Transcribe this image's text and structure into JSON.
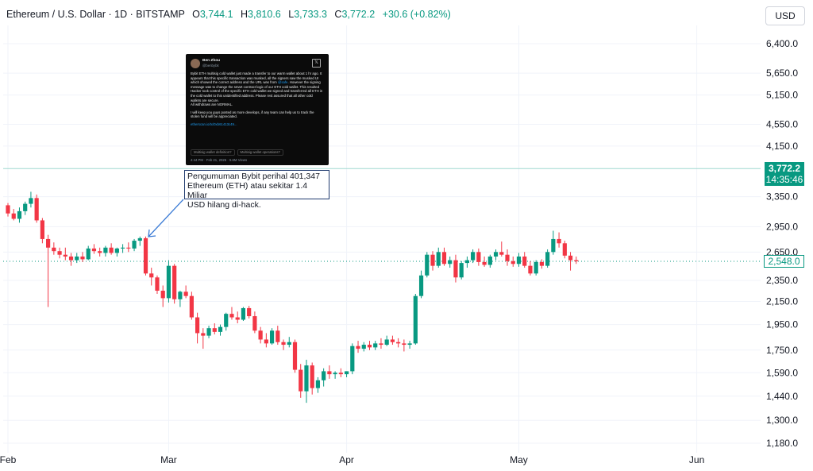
{
  "header": {
    "symbol": "Ethereum / U.S. Dollar · 1D · BITSTAMP",
    "open_label": "O",
    "open": "3,744.1",
    "high_label": "H",
    "high": "3,810.6",
    "low_label": "L",
    "low": "3,733.3",
    "close_label": "C",
    "close": "3,772.2",
    "change": "+30.6 (+0.82%)"
  },
  "currency_button": "USD",
  "colors": {
    "up": "#089981",
    "down": "#f23645",
    "line": "#9fd8cf",
    "arrow": "#3a7bd5"
  },
  "callout": {
    "line1": "Pengumuman Bybit perihal 401,347",
    "line2": "Ethereum (ETH) atau sekitar 1.4 Miliar",
    "line3": "USD hilang di-hack."
  },
  "tweet": {
    "name": "Ben Zhou",
    "handle": "@benbybit",
    "p1": "Bybit ETH multisig cold wallet just made a transfer to our warm wallet about 1 hr ago. It appears that this specific transaction was musked, all the signers saw the musked UI which showed the correct address and the URL was from",
    "p1_link": "@safe",
    "p1_end": ". However the signing message was to change the smart contract logic of our ETH cold wallet. This resulted Hacker took control of the specific ETH cold wallet we signed and transferred all ETH in the cold wallet to this unidentified address. Please rest assured that all other cold wallets are secure.",
    "p2": "All withdraws are NORMAL.",
    "p3": "I will keep you guys posted as more develops, if any team can help us to track the stolen fund will be appreciated.",
    "link": "etherscan.io/tx/0xb61413c49...",
    "tag1": "Multisig wallet definition?",
    "tag2": "Multisig wallet operations?",
    "meta": "4:44 PM · Feb 21, 2025 · 5.6M Views"
  },
  "price_labels": {
    "current": "3,772.2",
    "countdown": "14:35:46",
    "last": "2,548.0"
  },
  "chart_data": {
    "type": "candlestick",
    "scale": "log",
    "ylim": [
      1130,
      7300
    ],
    "y_ticks": [
      6400,
      5650,
      5150,
      4550,
      4150,
      3350,
      2950,
      2650,
      2350,
      2150,
      1950,
      1750,
      1590,
      1440,
      1300,
      1180
    ],
    "y_tick_labels": [
      "6,400.0",
      "5,650.0",
      "5,150.0",
      "4,550.0",
      "4,150.0",
      "3,350.0",
      "2,950.0",
      "2,650.0",
      "2,350.0",
      "2,150.0",
      "1,950.0",
      "1,750.0",
      "1,590.0",
      "1,440.0",
      "1,300.0",
      "1,180.0"
    ],
    "x_labels": [
      "Feb",
      "Mar",
      "Apr",
      "May",
      "Jun"
    ],
    "x_label_days": [
      0,
      28,
      59,
      89,
      120
    ],
    "start_date": "2025-01-26",
    "current_price": 3772.2,
    "last_price": 2548.0,
    "candles": [
      [
        3230,
        3260,
        3080,
        3120
      ],
      [
        3120,
        3180,
        3030,
        3050
      ],
      [
        3050,
        3200,
        3000,
        3150
      ],
      [
        3150,
        3280,
        3100,
        3250
      ],
      [
        3250,
        3420,
        3200,
        3330
      ],
      [
        3330,
        3380,
        3000,
        3030
      ],
      [
        3030,
        3060,
        2750,
        2800
      ],
      [
        2800,
        2850,
        2100,
        2700
      ],
      [
        2700,
        2760,
        2620,
        2660
      ],
      [
        2660,
        2700,
        2580,
        2620
      ],
      [
        2620,
        2700,
        2560,
        2600
      ],
      [
        2600,
        2640,
        2500,
        2560
      ],
      [
        2560,
        2640,
        2530,
        2600
      ],
      [
        2600,
        2650,
        2540,
        2570
      ],
      [
        2570,
        2720,
        2560,
        2690
      ],
      [
        2690,
        2740,
        2630,
        2660
      ],
      [
        2660,
        2700,
        2600,
        2640
      ],
      [
        2640,
        2720,
        2600,
        2700
      ],
      [
        2700,
        2750,
        2620,
        2640
      ],
      [
        2640,
        2700,
        2600,
        2690
      ],
      [
        2690,
        2740,
        2640,
        2700
      ],
      [
        2700,
        2760,
        2650,
        2690
      ],
      [
        2690,
        2800,
        2660,
        2780
      ],
      [
        2780,
        2830,
        2720,
        2810
      ],
      [
        2810,
        2830,
        2400,
        2420
      ],
      [
        2420,
        2480,
        2300,
        2380
      ],
      [
        2380,
        2400,
        2220,
        2250
      ],
      [
        2250,
        2300,
        2100,
        2180
      ],
      [
        2180,
        2560,
        2140,
        2500
      ],
      [
        2500,
        2520,
        2130,
        2170
      ],
      [
        2170,
        2250,
        2100,
        2240
      ],
      [
        2240,
        2300,
        2180,
        2200
      ],
      [
        2200,
        2240,
        1990,
        2010
      ],
      [
        2010,
        2050,
        1800,
        1880
      ],
      [
        1880,
        1920,
        1760,
        1860
      ],
      [
        1860,
        1940,
        1840,
        1920
      ],
      [
        1920,
        1960,
        1870,
        1890
      ],
      [
        1890,
        1950,
        1860,
        1930
      ],
      [
        1930,
        2050,
        1900,
        2040
      ],
      [
        2040,
        2100,
        1990,
        2010
      ],
      [
        2010,
        2060,
        1960,
        1990
      ],
      [
        1990,
        2100,
        1980,
        2090
      ],
      [
        2090,
        2110,
        2000,
        2020
      ],
      [
        2020,
        2060,
        1880,
        1900
      ],
      [
        1900,
        1930,
        1800,
        1830
      ],
      [
        1830,
        1880,
        1770,
        1800
      ],
      [
        1800,
        1920,
        1790,
        1900
      ],
      [
        1900,
        1940,
        1790,
        1810
      ],
      [
        1810,
        1830,
        1750,
        1790
      ],
      [
        1790,
        1850,
        1770,
        1810
      ],
      [
        1810,
        1830,
        1590,
        1610
      ],
      [
        1610,
        1650,
        1430,
        1470
      ],
      [
        1470,
        1680,
        1400,
        1640
      ],
      [
        1640,
        1660,
        1450,
        1490
      ],
      [
        1490,
        1560,
        1460,
        1540
      ],
      [
        1540,
        1620,
        1500,
        1600
      ],
      [
        1600,
        1640,
        1550,
        1580
      ],
      [
        1580,
        1600,
        1550,
        1590
      ],
      [
        1590,
        1620,
        1560,
        1580
      ],
      [
        1580,
        1600,
        1560,
        1600
      ],
      [
        1600,
        1800,
        1580,
        1780
      ],
      [
        1780,
        1820,
        1730,
        1760
      ],
      [
        1760,
        1810,
        1740,
        1790
      ],
      [
        1790,
        1820,
        1750,
        1770
      ],
      [
        1770,
        1820,
        1750,
        1800
      ],
      [
        1800,
        1840,
        1760,
        1790
      ],
      [
        1790,
        1860,
        1780,
        1830
      ],
      [
        1830,
        1860,
        1790,
        1810
      ],
      [
        1810,
        1840,
        1770,
        1800
      ],
      [
        1800,
        1830,
        1740,
        1790
      ],
      [
        1790,
        1820,
        1760,
        1800
      ],
      [
        1800,
        2220,
        1790,
        2200
      ],
      [
        2200,
        2450,
        2180,
        2400
      ],
      [
        2400,
        2650,
        2380,
        2620
      ],
      [
        2620,
        2660,
        2450,
        2500
      ],
      [
        2500,
        2700,
        2480,
        2650
      ],
      [
        2650,
        2700,
        2500,
        2520
      ],
      [
        2520,
        2600,
        2480,
        2560
      ],
      [
        2560,
        2620,
        2330,
        2380
      ],
      [
        2380,
        2550,
        2360,
        2530
      ],
      [
        2530,
        2600,
        2480,
        2560
      ],
      [
        2560,
        2680,
        2530,
        2650
      ],
      [
        2650,
        2690,
        2500,
        2540
      ],
      [
        2540,
        2600,
        2490,
        2510
      ],
      [
        2510,
        2620,
        2480,
        2600
      ],
      [
        2600,
        2680,
        2560,
        2650
      ],
      [
        2650,
        2770,
        2600,
        2620
      ],
      [
        2620,
        2680,
        2500,
        2550
      ],
      [
        2550,
        2600,
        2490,
        2520
      ],
      [
        2520,
        2640,
        2490,
        2600
      ],
      [
        2600,
        2650,
        2480,
        2500
      ],
      [
        2500,
        2550,
        2400,
        2420
      ],
      [
        2420,
        2560,
        2400,
        2540
      ],
      [
        2540,
        2570,
        2470,
        2500
      ],
      [
        2500,
        2680,
        2480,
        2650
      ],
      [
        2650,
        2900,
        2620,
        2800
      ],
      [
        2800,
        2880,
        2700,
        2750
      ],
      [
        2750,
        2780,
        2580,
        2610
      ],
      [
        2610,
        2650,
        2450,
        2560
      ],
      [
        2560,
        2600,
        2520,
        2548
      ]
    ]
  }
}
